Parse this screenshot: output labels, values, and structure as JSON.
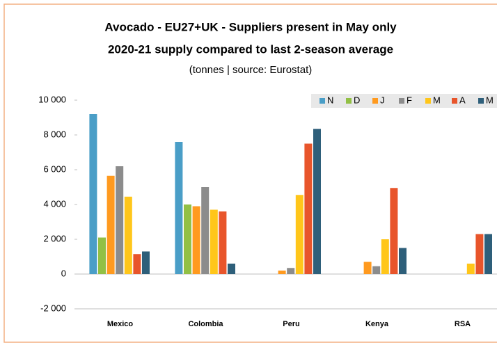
{
  "chart_data": {
    "type": "bar",
    "title": "Avocado  - EU27+UK  - Suppliers present in May only",
    "subtitle": "2020-21 supply compared to last 2-season average",
    "note": "(tonnes | source: Eurostat)",
    "categories": [
      "Mexico",
      "Colombia",
      "Peru",
      "Kenya",
      "RSA"
    ],
    "series": [
      {
        "name": "N",
        "color": "#4a9ec7",
        "values": [
          9200,
          7600,
          0,
          0,
          0
        ]
      },
      {
        "name": "D",
        "color": "#92c045",
        "values": [
          2100,
          4000,
          0,
          0,
          0
        ]
      },
      {
        "name": "J",
        "color": "#ff9a1f",
        "values": [
          5650,
          3900,
          200,
          700,
          0
        ]
      },
      {
        "name": "F",
        "color": "#8c8c8c",
        "values": [
          6200,
          5000,
          350,
          450,
          0
        ]
      },
      {
        "name": "M",
        "color": "#ffc61a",
        "values": [
          4450,
          3700,
          4550,
          2000,
          600
        ]
      },
      {
        "name": "A",
        "color": "#e8552b",
        "values": [
          1150,
          3600,
          7500,
          4950,
          2300
        ]
      },
      {
        "name": "M",
        "color": "#2e5f7a",
        "values": [
          1300,
          600,
          8350,
          1500,
          2300
        ]
      }
    ],
    "ylim": [
      -2000,
      10000
    ],
    "yticks": [
      {
        "value": -2000,
        "label": "-2 000"
      },
      0,
      {
        "value": 2000,
        "label": "2 000"
      },
      {
        "value": 4000,
        "label": "4 000"
      },
      {
        "value": 6000,
        "label": "6 000"
      },
      {
        "value": 8000,
        "label": "8 000"
      },
      {
        "value": 10000,
        "label": "10 000"
      }
    ],
    "grid": false,
    "legend": "top-right"
  }
}
